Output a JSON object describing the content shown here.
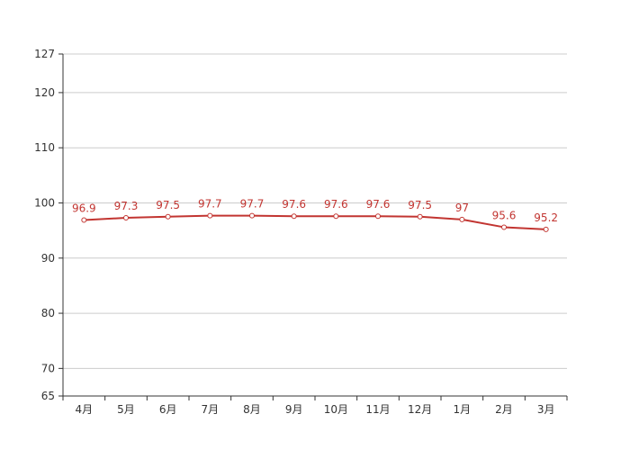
{
  "chart_data": {
    "type": "line",
    "categories": [
      "4月",
      "5月",
      "6月",
      "7月",
      "8月",
      "9月",
      "10月",
      "11月",
      "12月",
      "1月",
      "2月",
      "3月"
    ],
    "series": [
      {
        "values": [
          96.9,
          97.3,
          97.5,
          97.7,
          97.7,
          97.6,
          97.6,
          97.6,
          97.5,
          97,
          95.6,
          95.2
        ],
        "color": "#c23531"
      }
    ],
    "y_ticks": [
      65,
      70,
      80,
      90,
      100,
      110,
      120,
      127
    ],
    "ylim": [
      65,
      127
    ],
    "grid": true,
    "data_labels": true
  }
}
